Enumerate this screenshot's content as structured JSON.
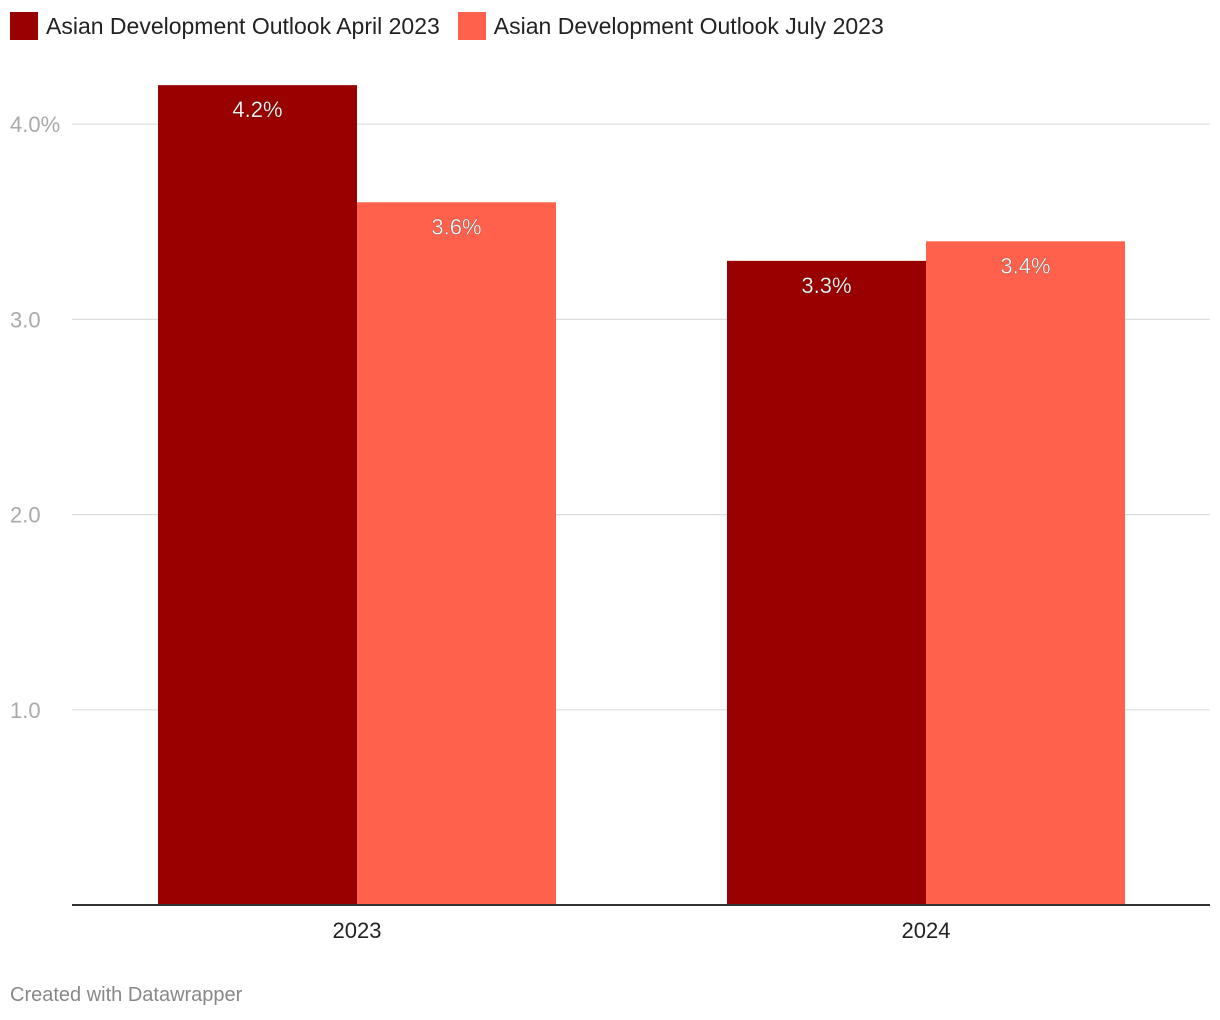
{
  "chart_data": {
    "type": "bar",
    "categories": [
      "2023",
      "2024"
    ],
    "series": [
      {
        "name": "Asian Development Outlook April 2023",
        "values": [
          4.2,
          3.3
        ],
        "labels": [
          "4.2%",
          "3.3%"
        ],
        "color": "#990000"
      },
      {
        "name": "Asian Development Outlook July 2023",
        "values": [
          3.6,
          3.4
        ],
        "labels": [
          "3.6%",
          "3.4%"
        ],
        "color": "#ff614c"
      }
    ],
    "yticks": [
      {
        "value": 1.0,
        "label": "1.0"
      },
      {
        "value": 2.0,
        "label": "2.0"
      },
      {
        "value": 3.0,
        "label": "3.0"
      },
      {
        "value": 4.0,
        "label": "4.0%"
      }
    ],
    "ylim": [
      0,
      4.2
    ],
    "grid": true,
    "legend_position": "top-left",
    "title": "",
    "xlabel": "",
    "ylabel": ""
  },
  "footer": {
    "credit": "Created with Datawrapper"
  },
  "colors": {
    "gridline": "#dddddd",
    "axis": "#333333",
    "tick_label": "#aaaaaa",
    "category_label": "#222222",
    "bar_label": "#ffffff"
  }
}
